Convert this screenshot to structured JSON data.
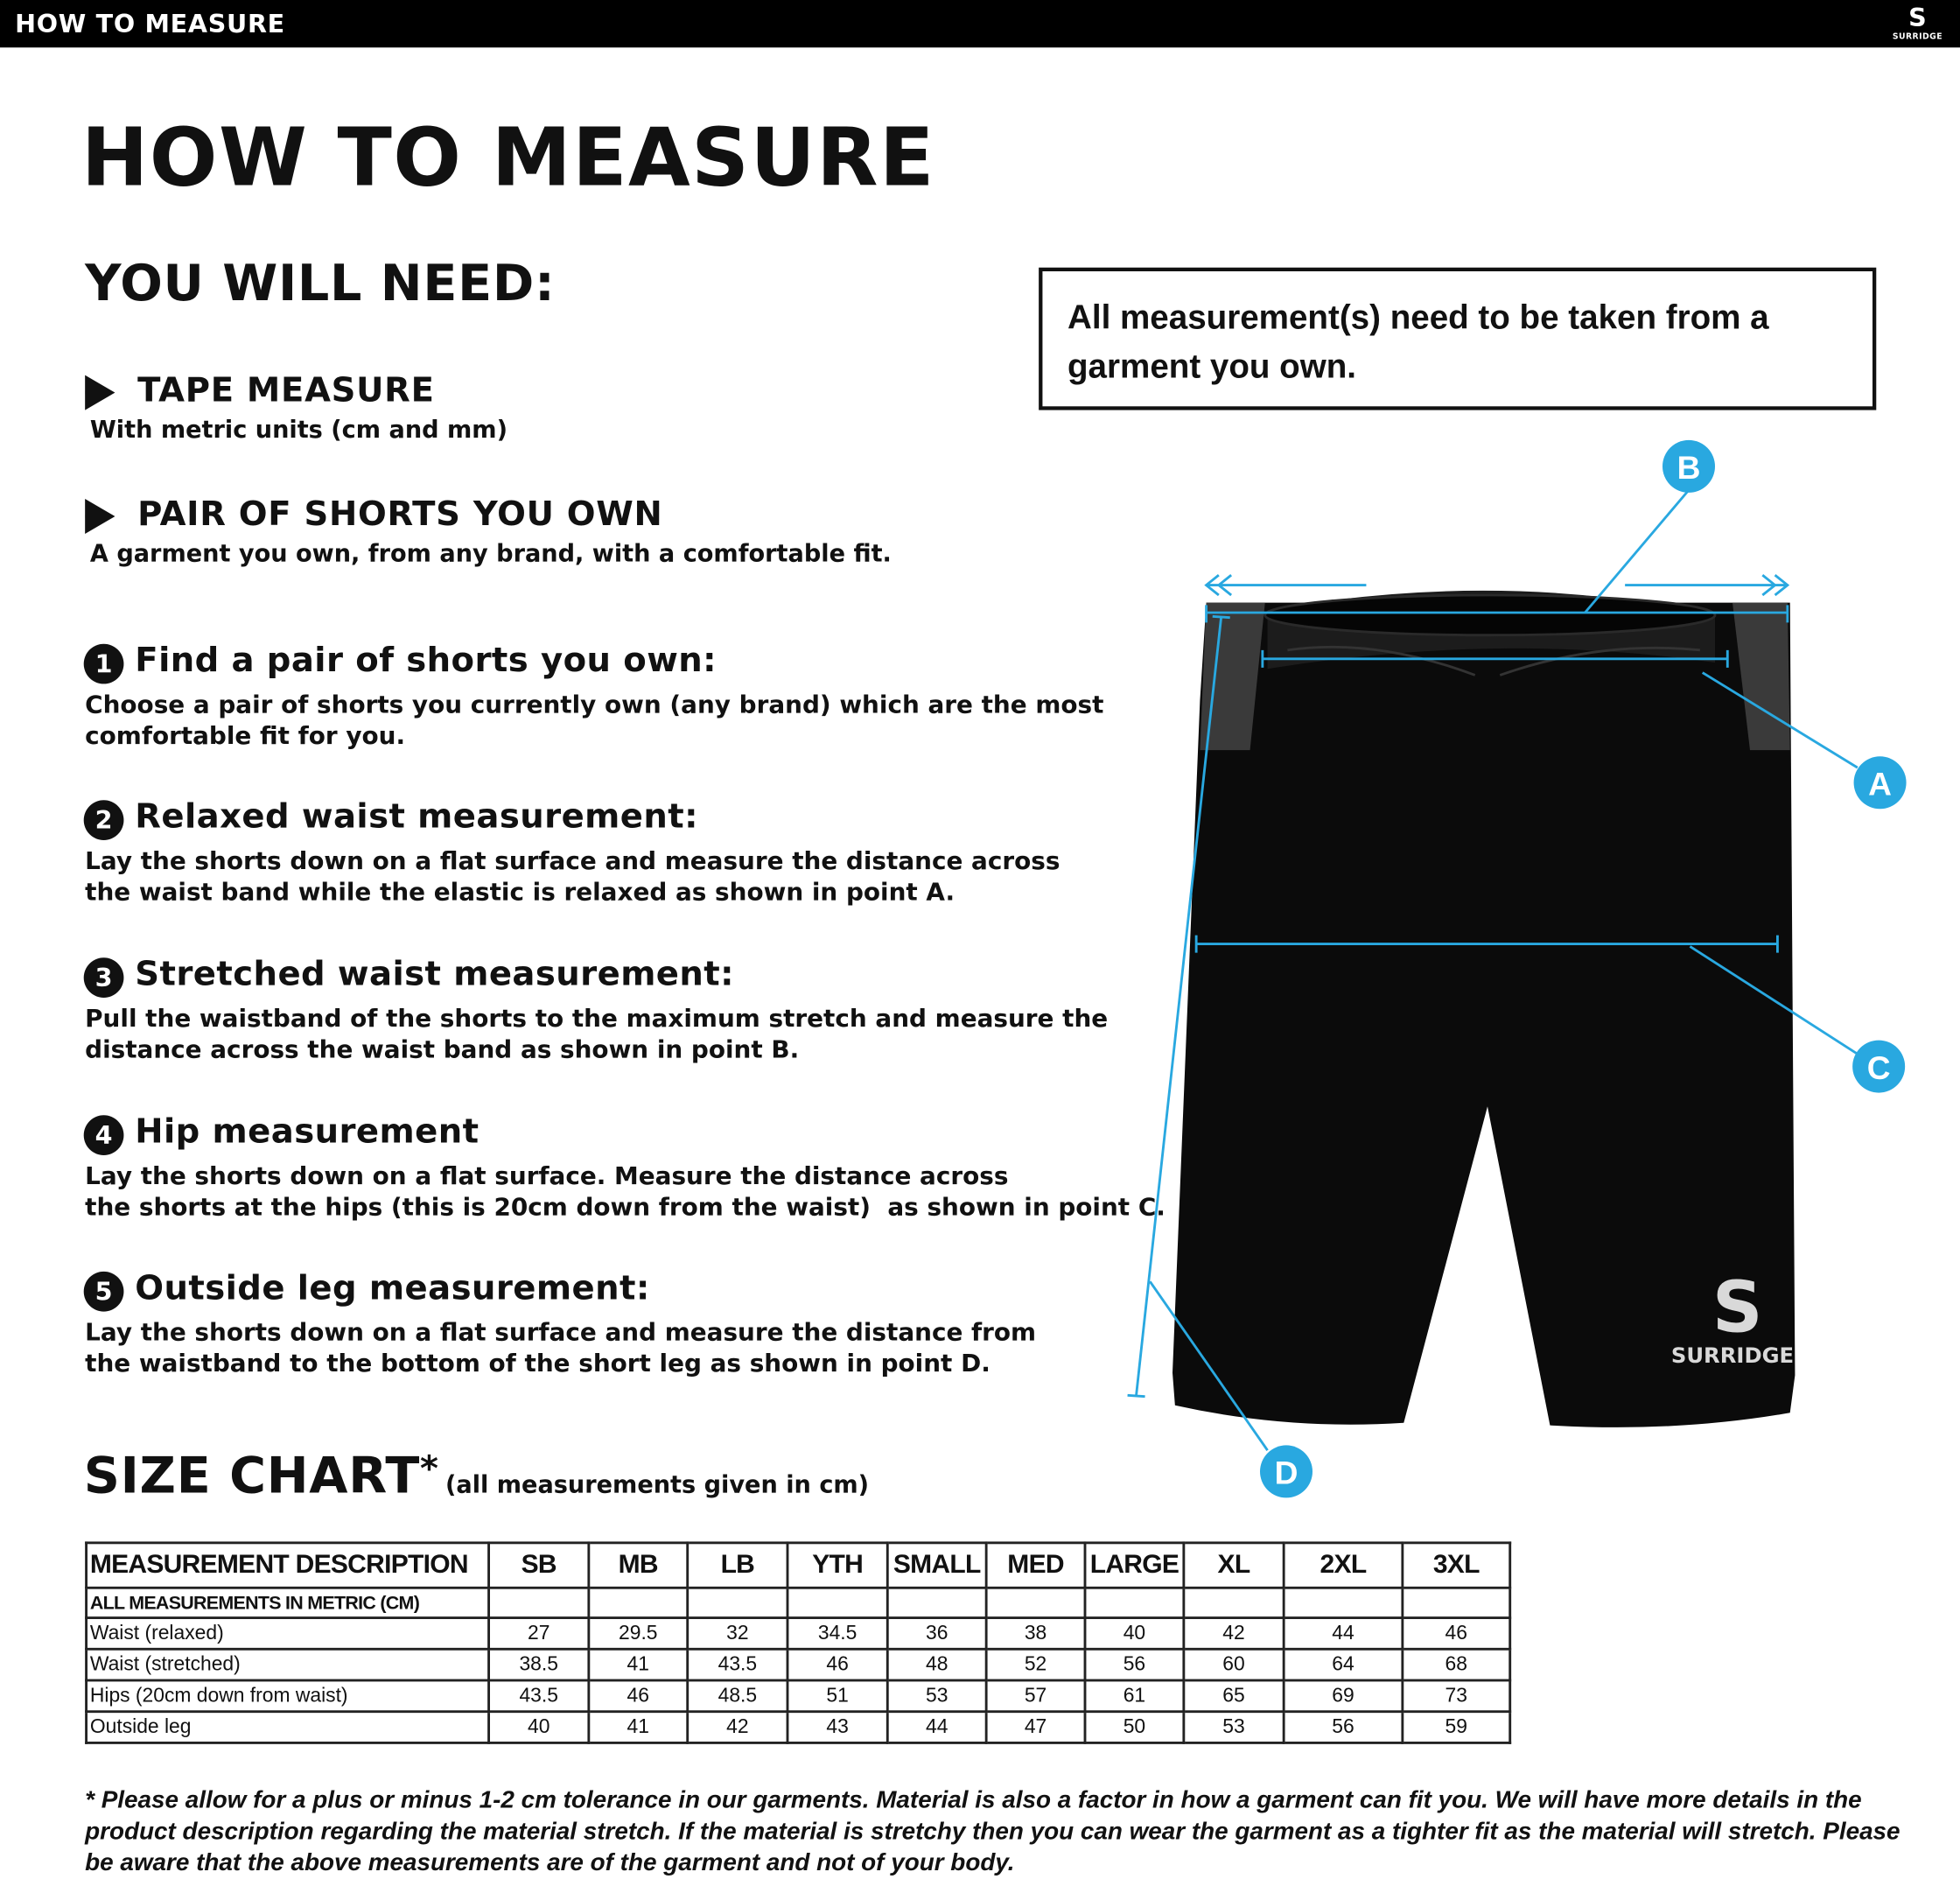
{
  "topbar": {
    "title": "HOW TO MEASURE",
    "logo_text": "SURRIDGE"
  },
  "page_title": "HOW TO MEASURE",
  "you_will_need": {
    "heading": "YOU WILL NEED:",
    "items": [
      {
        "title": "TAPE MEASURE",
        "desc": "With metric units (cm and mm)"
      },
      {
        "title": "PAIR OF SHORTS YOU OWN",
        "desc": "A garment you own, from any brand, with a comfortable fit."
      }
    ]
  },
  "note": "All measurement(s) need to be taken from a garment you own.",
  "steps": [
    {
      "num": "1",
      "title": "Find a pair of shorts you own:",
      "desc": "Choose a pair of shorts you currently own (any brand) which are the most\ncomfortable fit for you."
    },
    {
      "num": "2",
      "title": "Relaxed waist measurement:",
      "desc": "Lay the shorts down on a flat surface and measure the distance across\nthe waist band while the elastic is relaxed as shown in point A."
    },
    {
      "num": "3",
      "title": "Stretched waist measurement:",
      "desc": "Pull the waistband of the shorts to the maximum stretch and measure the\ndistance across the waist band as shown in point B."
    },
    {
      "num": "4",
      "title": "Hip measurement",
      "desc": "Lay the shorts down on a flat surface. Measure the distance across\nthe shorts at the hips (this is 20cm down from the waist)  as shown in point C."
    },
    {
      "num": "5",
      "title": "Outside leg measurement:",
      "desc": "Lay the shorts down on a flat surface and measure the distance from\nthe waistband to the bottom of the short leg as shown in point D."
    }
  ],
  "diagram": {
    "labels": [
      "A",
      "B",
      "C",
      "D"
    ],
    "accent_color": "#29a8e0",
    "garment_logo": "SURRIDGE"
  },
  "size_chart": {
    "title": "SIZE CHART",
    "asterisk": "*",
    "subtitle": "(all measurements given in cm)",
    "header": [
      "MEASUREMENT DESCRIPTION",
      "SB",
      "MB",
      "LB",
      "YTH",
      "SMALL",
      "MED",
      "LARGE",
      "XL",
      "2XL",
      "3XL"
    ],
    "subheader": "ALL MEASUREMENTS IN METRIC (CM)",
    "rows": [
      {
        "label": "Waist (relaxed)",
        "values": [
          "27",
          "29.5",
          "32",
          "34.5",
          "36",
          "38",
          "40",
          "42",
          "44",
          "46"
        ]
      },
      {
        "label": "Waist (stretched)",
        "values": [
          "38.5",
          "41",
          "43.5",
          "46",
          "48",
          "52",
          "56",
          "60",
          "64",
          "68"
        ]
      },
      {
        "label": "Hips (20cm down from waist)",
        "values": [
          "43.5",
          "46",
          "48.5",
          "51",
          "53",
          "57",
          "61",
          "65",
          "69",
          "73"
        ]
      },
      {
        "label": "Outside leg",
        "values": [
          "40",
          "41",
          "42",
          "43",
          "44",
          "47",
          "50",
          "53",
          "56",
          "59"
        ]
      }
    ]
  },
  "footnote": "* Please allow for a plus or minus 1-2 cm tolerance in our garments. Material is also a factor in how a garment can fit you. We will have more details in the product description regarding the material stretch.  If the material is stretchy then you can wear the garment as a tighter fit as the material will stretch.  Please be aware that the above measurements are of the garment and not of your body."
}
